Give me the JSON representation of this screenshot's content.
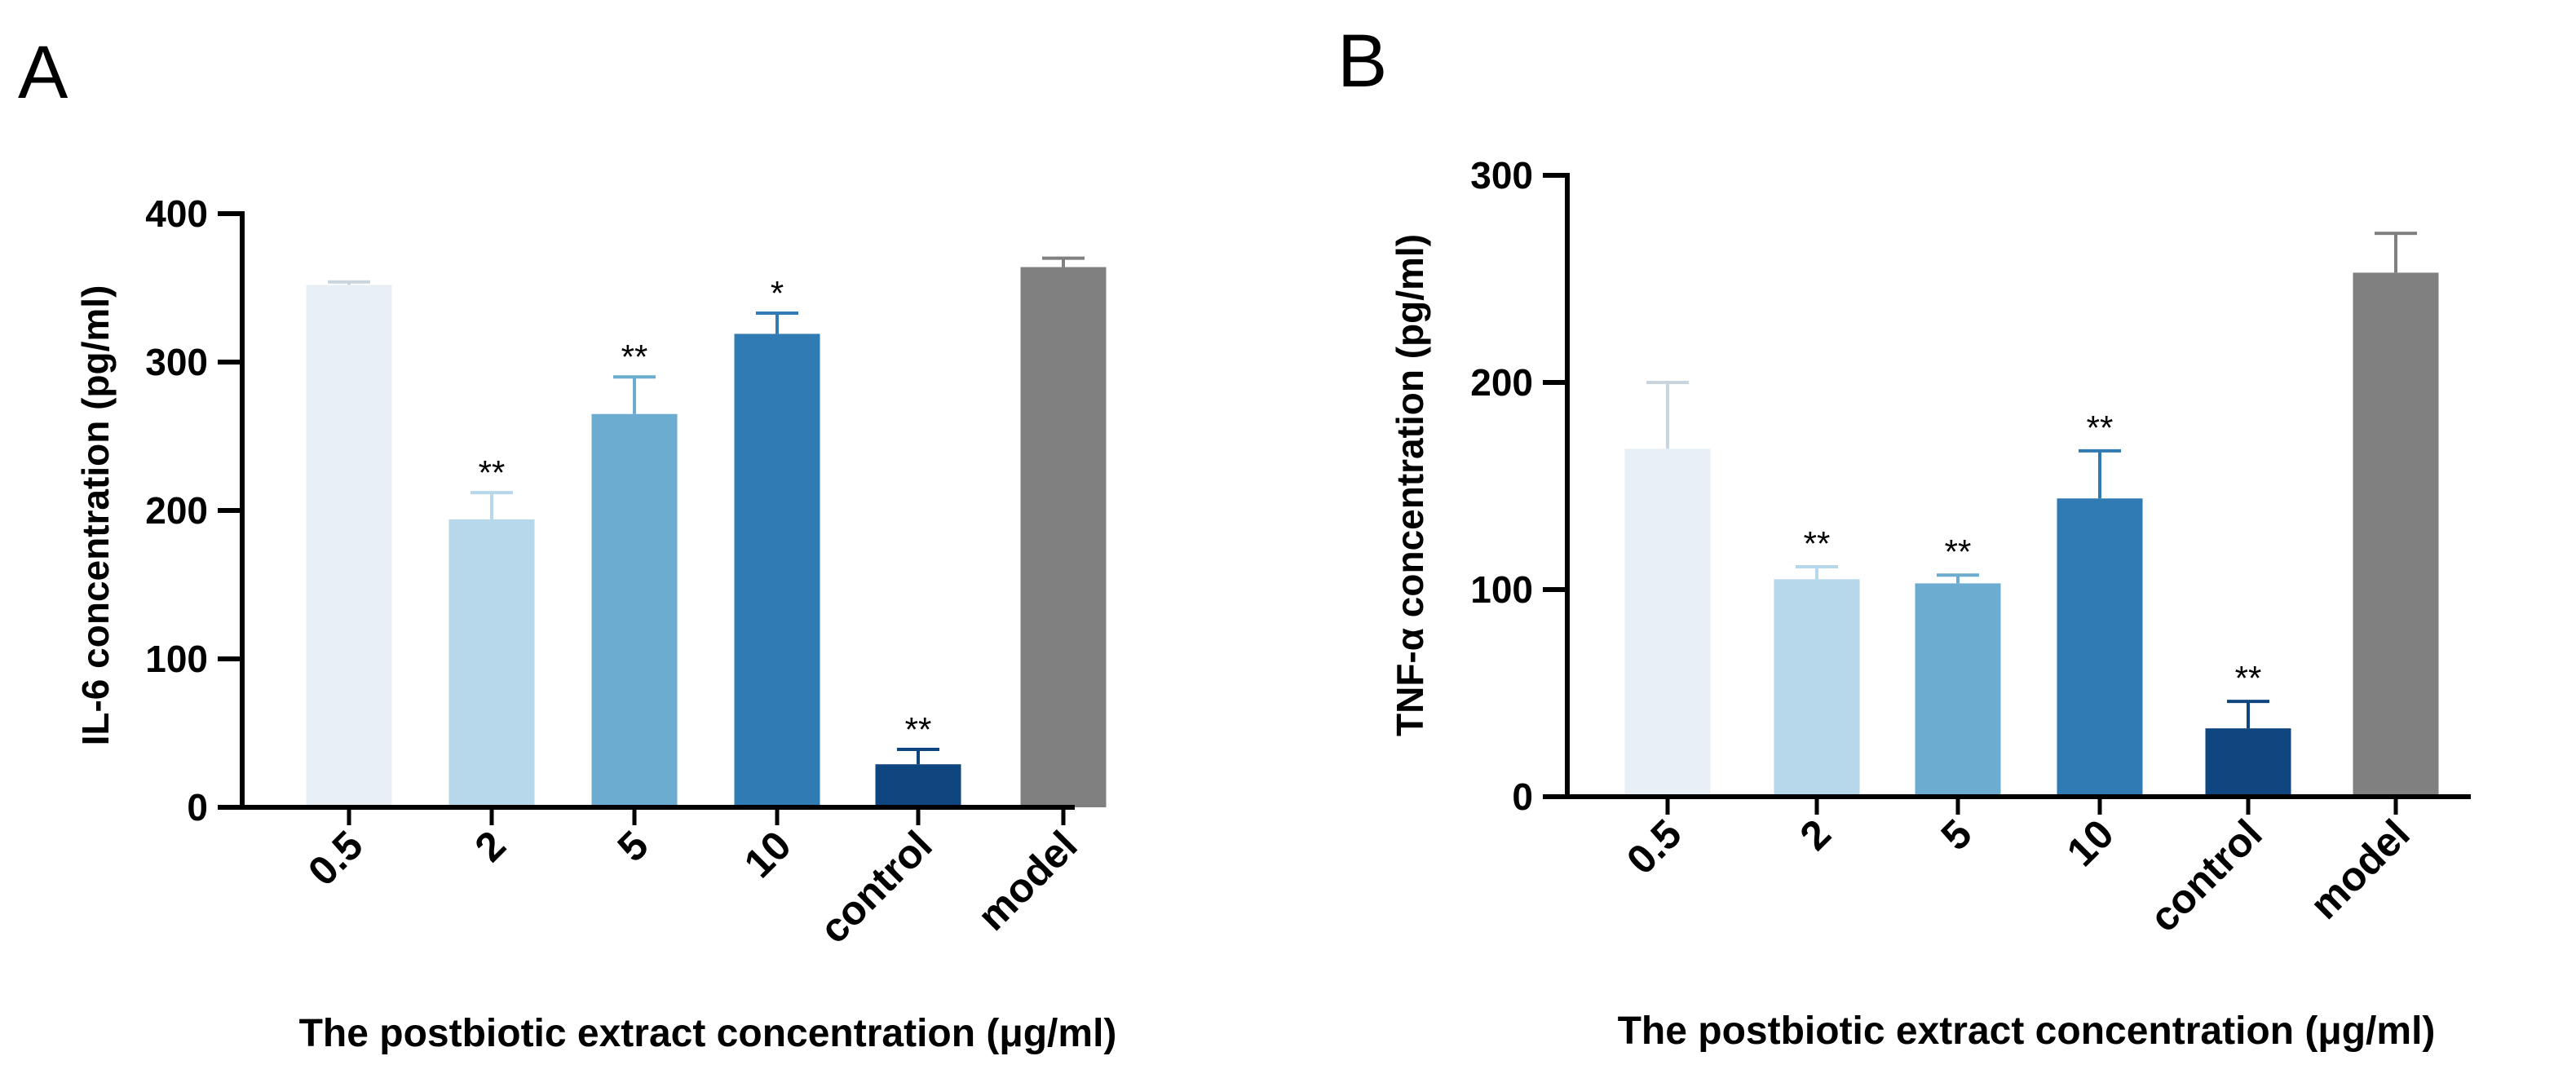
{
  "chart_data": [
    {
      "panel": "A",
      "type": "bar",
      "title": "",
      "xlabel": "The postbiotic extract concentration (μg/ml)",
      "ylabel": "IL-6 concentration (pg/ml)",
      "ylim": [
        0,
        400
      ],
      "yticks": [
        0,
        100,
        200,
        300,
        400
      ],
      "categories": [
        "0.5",
        "2",
        "5",
        "10",
        "control",
        "model"
      ],
      "values": [
        352,
        194,
        265,
        319,
        29,
        364
      ],
      "errors": [
        2,
        18,
        25,
        14,
        10,
        6
      ],
      "significance": [
        "",
        "**",
        "**",
        "*",
        "**",
        ""
      ],
      "colors": [
        "#e8eff5",
        "#b7d7ea",
        "#6dacd1",
        "#317bb5",
        "#0f467f",
        "#808080"
      ],
      "error_colors": [
        "#c8d4de",
        "#b7d7ea",
        "#6dacd1",
        "#317bb5",
        "#0f467f",
        "#808080"
      ]
    },
    {
      "panel": "B",
      "type": "bar",
      "title": "",
      "xlabel": "The postbiotic extract concentration (μg/ml)",
      "ylabel": "TNF-α concentration (pg/ml)",
      "ylim": [
        0,
        300
      ],
      "yticks": [
        0,
        100,
        200,
        300
      ],
      "categories": [
        "0.5",
        "2",
        "5",
        "10",
        "control",
        "model"
      ],
      "values": [
        168,
        105,
        103,
        144,
        33,
        253
      ],
      "errors": [
        32,
        6,
        4,
        23,
        13,
        19
      ],
      "significance": [
        "",
        "**",
        "**",
        "**",
        "**",
        ""
      ],
      "colors": [
        "#e8eff5",
        "#b7d7ea",
        "#6dacd1",
        "#317bb5",
        "#0f467f",
        "#808080"
      ],
      "error_colors": [
        "#c8d4de",
        "#b7d7ea",
        "#6dacd1",
        "#317bb5",
        "#0f467f",
        "#808080"
      ]
    }
  ]
}
